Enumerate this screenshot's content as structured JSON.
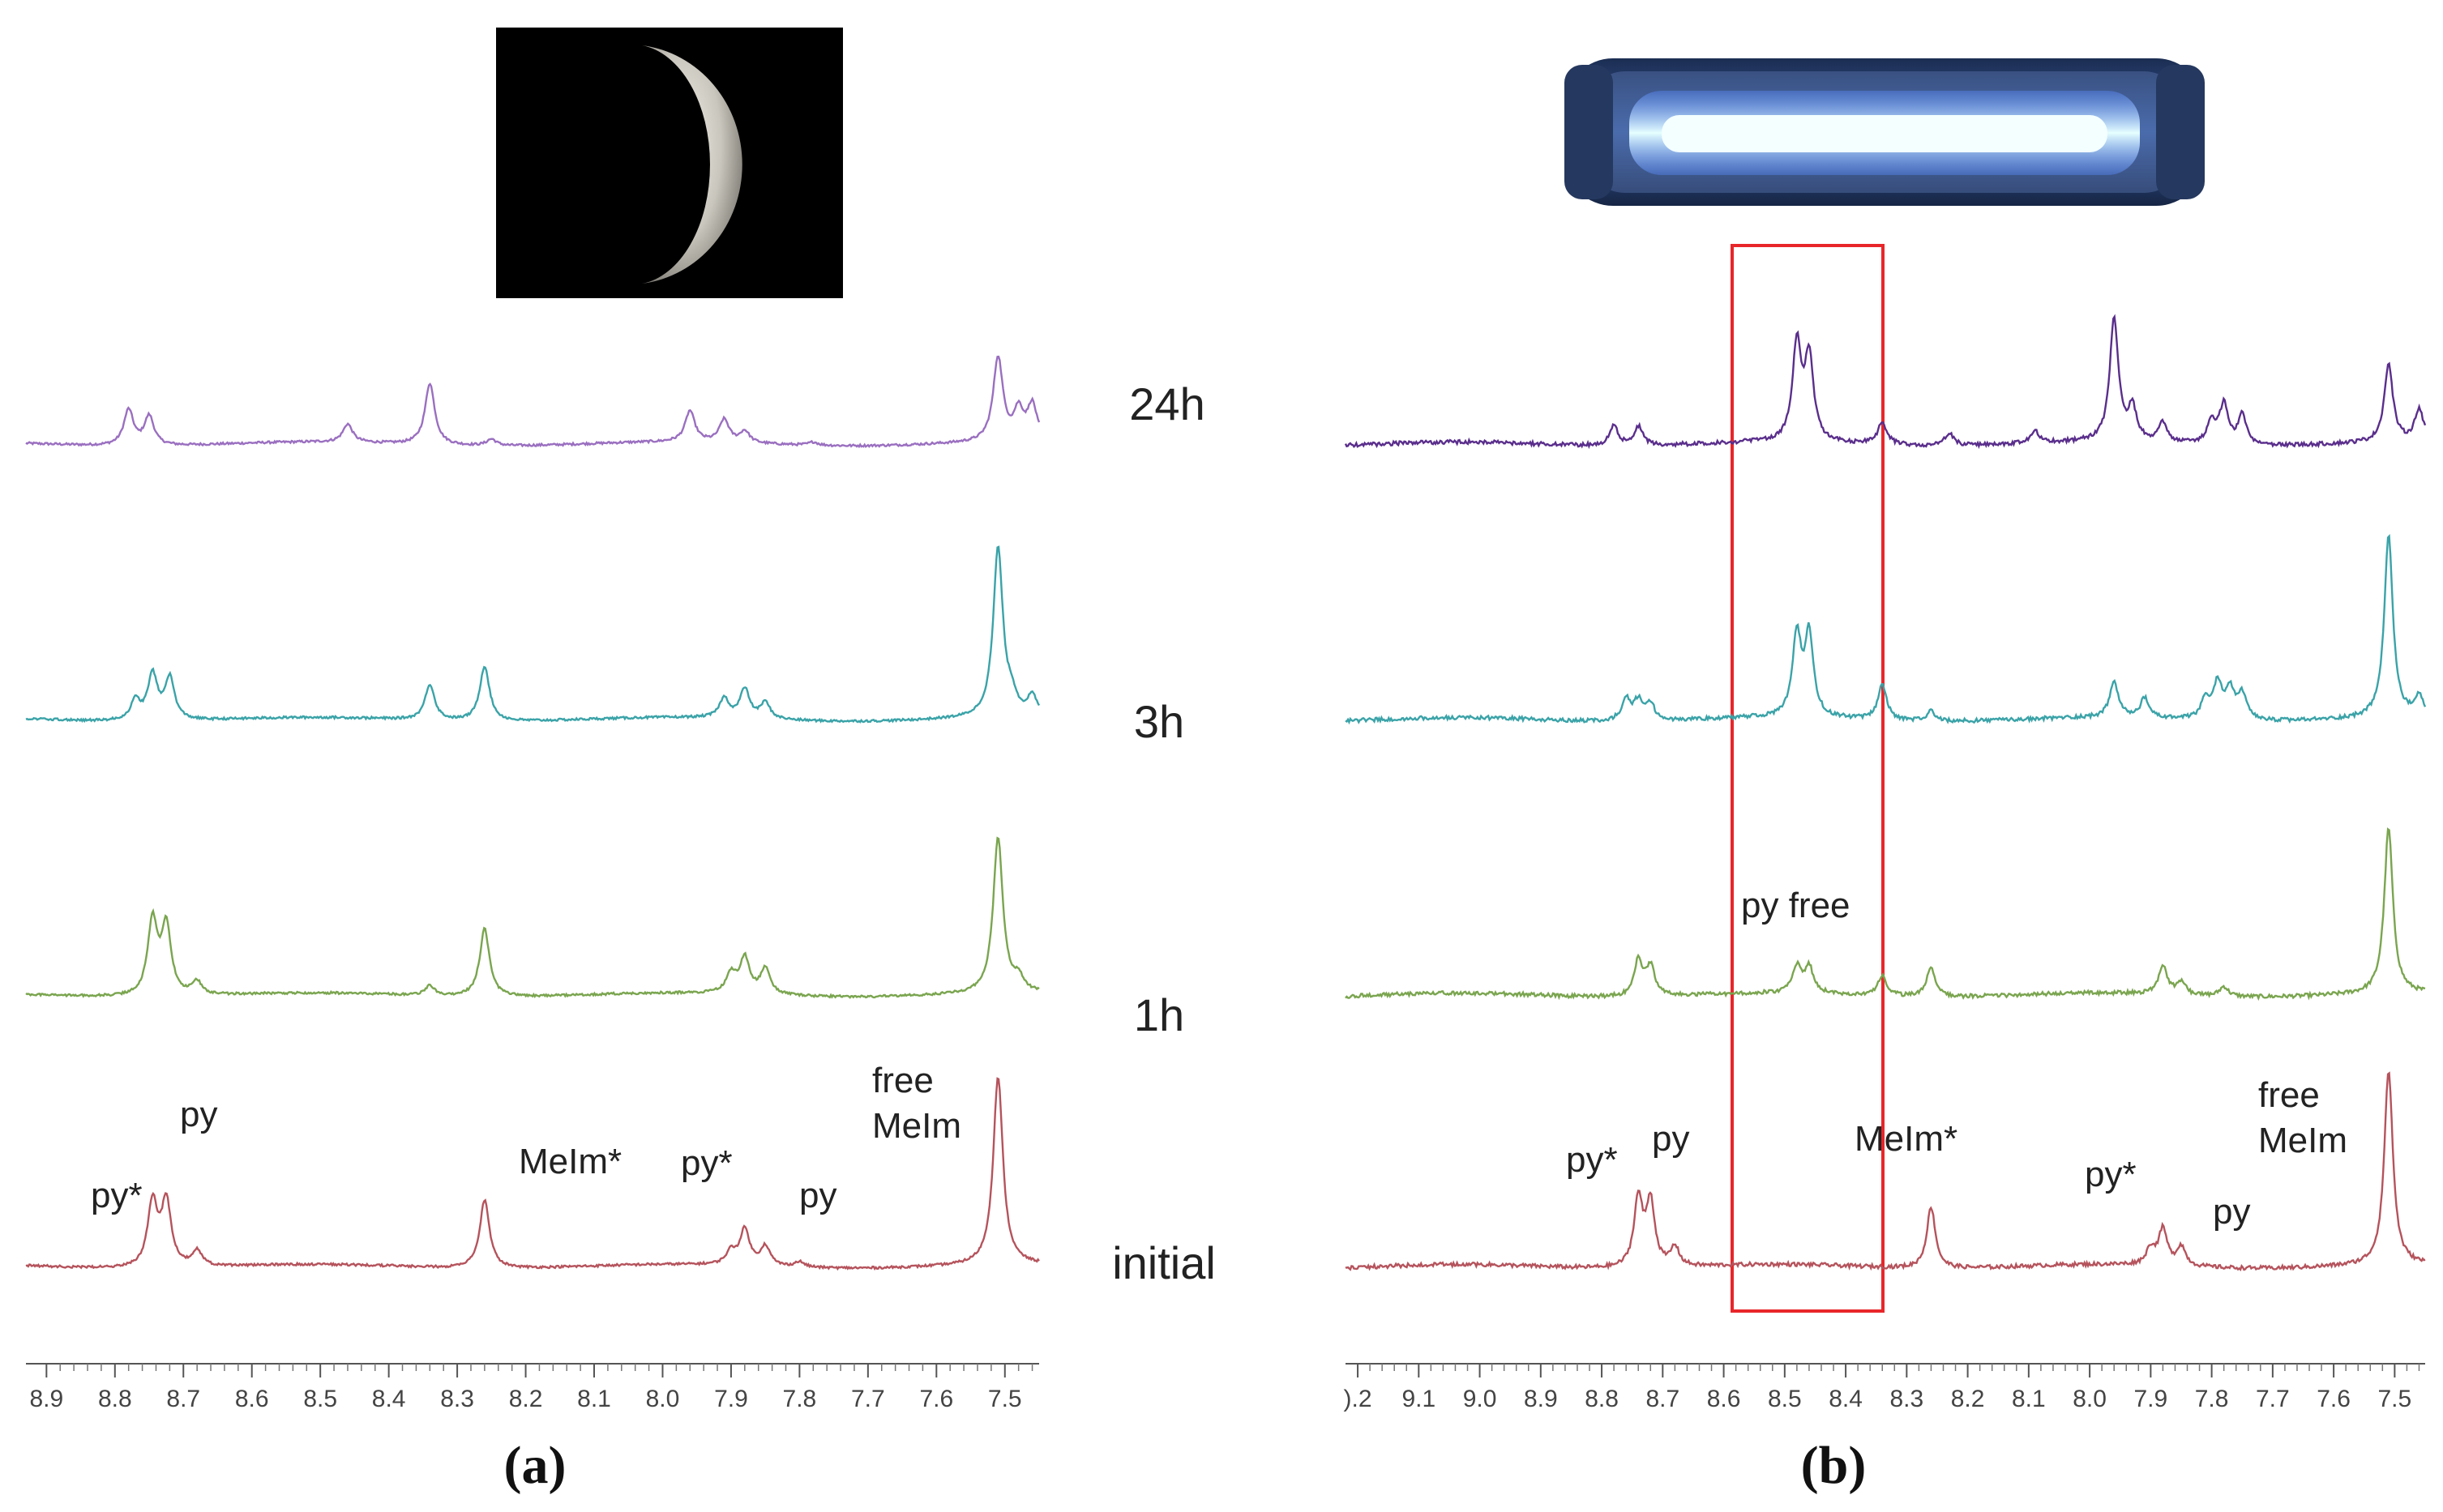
{
  "panels": {
    "a": {
      "caption": "(a)",
      "ticks": [
        "8.9",
        "8.8",
        "8.7",
        "8.6",
        "8.5",
        "8.4",
        "8.3",
        "8.2",
        "8.1",
        "8.0",
        "7.9",
        "7.8",
        "7.7",
        "7.6",
        "7.5"
      ]
    },
    "b": {
      "caption": "(b)",
      "ticks": [
        ").2",
        "9.1",
        "9.0",
        "8.9",
        "8.8",
        "8.7",
        "8.6",
        "8.5",
        "8.4",
        "8.3",
        "8.2",
        "8.1",
        "8.0",
        "7.9",
        "7.8",
        "7.7",
        "7.6",
        "7.5"
      ]
    }
  },
  "time_labels": [
    "24h",
    "3h",
    "1h",
    "initial"
  ],
  "annotations_a": {
    "py_star_left": "py*",
    "py_left": "py",
    "melm_star": "MeIm*",
    "py_star_right": "py*",
    "py_right": "py",
    "free": "free",
    "melm": "MeIm"
  },
  "annotations_b": {
    "py_free": "py free",
    "py_star_left": "py*",
    "py_left": "py",
    "melm_star": "MeIm*",
    "py_star_right": "py*",
    "py_right": "py",
    "free": "free",
    "melm": "MeIm"
  },
  "colors": {
    "24h": "#9a6fc0",
    "3h": "#3aa3a8",
    "1h": "#7aa54f",
    "initial": "#b5535c",
    "24h_b": "#5a2e8c",
    "highlight_box": "#e8262a"
  },
  "chart_data": [
    {
      "type": "line",
      "xlim": [
        8.93,
        7.45
      ],
      "axis_reversed": true,
      "series": [
        {
          "time_label": "24h",
          "baseline": 0,
          "peaks": [
            [
              8.78,
              0.55
            ],
            [
              8.75,
              0.45
            ],
            [
              8.46,
              0.28
            ],
            [
              8.34,
              0.95
            ],
            [
              8.25,
              0.1
            ],
            [
              7.96,
              0.48
            ],
            [
              7.91,
              0.35
            ],
            [
              7.88,
              0.18
            ],
            [
              7.78,
              0.05
            ],
            [
              7.51,
              1.3
            ],
            [
              7.48,
              0.45
            ],
            [
              7.46,
              0.55
            ]
          ]
        },
        {
          "time_label": "3h",
          "baseline": 0,
          "peaks": [
            [
              8.77,
              0.3
            ],
            [
              8.745,
              0.7
            ],
            [
              8.72,
              0.65
            ],
            [
              8.34,
              0.55
            ],
            [
              8.26,
              0.85
            ],
            [
              7.91,
              0.3
            ],
            [
              7.88,
              0.45
            ],
            [
              7.85,
              0.25
            ],
            [
              7.51,
              2.6
            ],
            [
              7.49,
              0.25
            ],
            [
              7.46,
              0.3
            ]
          ]
        },
        {
          "time_label": "1h",
          "baseline": 0,
          "peaks": [
            [
              8.745,
              1.15
            ],
            [
              8.725,
              1.05
            ],
            [
              8.68,
              0.2
            ],
            [
              8.34,
              0.15
            ],
            [
              8.26,
              1.05
            ],
            [
              7.9,
              0.3
            ],
            [
              7.88,
              0.55
            ],
            [
              7.85,
              0.4
            ],
            [
              7.51,
              2.4
            ],
            [
              7.48,
              0.2
            ]
          ]
        },
        {
          "time_label": "initial",
          "baseline": 0,
          "peaks": [
            [
              8.745,
              1.0
            ],
            [
              8.725,
              1.0
            ],
            [
              8.68,
              0.25
            ],
            [
              8.26,
              1.05
            ],
            [
              7.9,
              0.2
            ],
            [
              7.88,
              0.55
            ],
            [
              7.85,
              0.3
            ],
            [
              7.8,
              0.08
            ],
            [
              7.51,
              2.9
            ]
          ]
        }
      ]
    },
    {
      "type": "line",
      "xlim": [
        9.22,
        7.45
      ],
      "axis_reversed": true,
      "highlight_range": [
        8.57,
        8.34
      ],
      "series": [
        {
          "time_label": "24h",
          "baseline": 0,
          "peaks": [
            [
              8.78,
              0.3
            ],
            [
              8.74,
              0.3
            ],
            [
              8.48,
              1.5
            ],
            [
              8.46,
              1.3
            ],
            [
              8.34,
              0.35
            ],
            [
              8.23,
              0.2
            ],
            [
              8.09,
              0.2
            ],
            [
              7.96,
              1.9
            ],
            [
              7.93,
              0.5
            ],
            [
              7.88,
              0.3
            ],
            [
              7.8,
              0.35
            ],
            [
              7.78,
              0.6
            ],
            [
              7.75,
              0.45
            ],
            [
              7.51,
              1.2
            ],
            [
              7.46,
              0.5
            ]
          ]
        },
        {
          "time_label": "3h",
          "baseline": 0,
          "peaks": [
            [
              8.76,
              0.35
            ],
            [
              8.74,
              0.3
            ],
            [
              8.72,
              0.25
            ],
            [
              8.48,
              1.25
            ],
            [
              8.46,
              1.25
            ],
            [
              8.34,
              0.55
            ],
            [
              8.26,
              0.15
            ],
            [
              7.96,
              0.55
            ],
            [
              7.91,
              0.3
            ],
            [
              7.81,
              0.3
            ],
            [
              7.79,
              0.55
            ],
            [
              7.77,
              0.45
            ],
            [
              7.75,
              0.4
            ],
            [
              7.51,
              2.8
            ],
            [
              7.46,
              0.3
            ]
          ]
        },
        {
          "time_label": "1h",
          "baseline": 0,
          "peaks": [
            [
              8.74,
              0.55
            ],
            [
              8.72,
              0.45
            ],
            [
              8.48,
              0.4
            ],
            [
              8.46,
              0.4
            ],
            [
              8.34,
              0.3
            ],
            [
              8.26,
              0.45
            ],
            [
              7.88,
              0.45
            ],
            [
              7.85,
              0.2
            ],
            [
              7.78,
              0.15
            ],
            [
              7.51,
              2.55
            ]
          ]
        },
        {
          "time_label": "initial",
          "baseline": 0,
          "peaks": [
            [
              8.74,
              1.05
            ],
            [
              8.72,
              1.0
            ],
            [
              8.68,
              0.3
            ],
            [
              8.26,
              0.95
            ],
            [
              7.9,
              0.25
            ],
            [
              7.88,
              0.55
            ],
            [
              7.85,
              0.3
            ],
            [
              7.51,
              3.0
            ]
          ]
        }
      ]
    }
  ]
}
